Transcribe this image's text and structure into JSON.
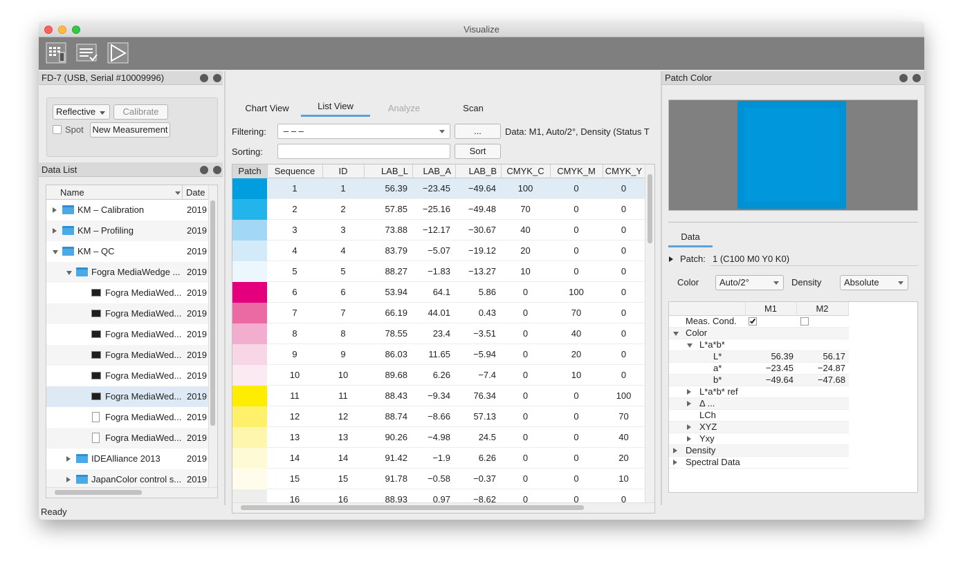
{
  "window": {
    "title": "Visualize",
    "status": "Ready"
  },
  "device_panel": {
    "title": "FD-7 (USB, Serial #10009996)",
    "mode": "Reflective",
    "calibrate": "Calibrate",
    "spot": "Spot",
    "new_measurement": "New Measurement"
  },
  "data_list": {
    "title": "Data List",
    "columns": [
      "Name",
      "Date"
    ],
    "rows": [
      {
        "name": "KM – Calibration",
        "date": "2019"
      },
      {
        "name": "KM – Profiling",
        "date": "2019"
      },
      {
        "name": "KM – QC",
        "date": "2019"
      },
      {
        "name": "Fogra MediaWedge ...",
        "date": "2019"
      },
      {
        "name": "Fogra MediaWed...",
        "date": "2019"
      },
      {
        "name": "Fogra MediaWed...",
        "date": "2019"
      },
      {
        "name": "Fogra MediaWed...",
        "date": "2019"
      },
      {
        "name": "Fogra MediaWed...",
        "date": "2019"
      },
      {
        "name": "Fogra MediaWed...",
        "date": "2019"
      },
      {
        "name": "Fogra MediaWed...",
        "date": "2019"
      },
      {
        "name": "Fogra MediaWed...",
        "date": "2019"
      },
      {
        "name": "Fogra MediaWed...",
        "date": "2019"
      },
      {
        "name": "IDEAlliance 2013",
        "date": "2019"
      },
      {
        "name": "JapanColor control s...",
        "date": "2019"
      }
    ]
  },
  "tabs": [
    "Chart View",
    "List View",
    "Analyze",
    "Scan"
  ],
  "filter": {
    "label": "Filtering:",
    "value": "– – –",
    "button": "...",
    "info": "Data: M1, Auto/2°, Density (Status T"
  },
  "sort": {
    "label": "Sorting:",
    "button": "Sort"
  },
  "table": {
    "columns": [
      "Patch",
      "Sequence",
      "ID",
      "LAB_L",
      "LAB_A",
      "LAB_B",
      "CMYK_C",
      "CMYK_M",
      "CMYK_Y"
    ],
    "patch_colors": [
      "#009ddf",
      "#22b4ea",
      "#a2d8f5",
      "#d3ebf9",
      "#ebf6fd",
      "#e4007d",
      "#ec6aa4",
      "#f3aecf",
      "#f8d6e6",
      "#fbeaf2",
      "#ffed00",
      "#fff06b",
      "#fff6ad",
      "#fffad6",
      "#fffcec",
      "#eeeeec"
    ],
    "rows": [
      [
        "1",
        "1",
        "56.39",
        "−23.45",
        "−49.64",
        "100",
        "0",
        "0"
      ],
      [
        "2",
        "2",
        "57.85",
        "−25.16",
        "−49.48",
        "70",
        "0",
        "0"
      ],
      [
        "3",
        "3",
        "73.88",
        "−12.17",
        "−30.67",
        "40",
        "0",
        "0"
      ],
      [
        "4",
        "4",
        "83.79",
        "−5.07",
        "−19.12",
        "20",
        "0",
        "0"
      ],
      [
        "5",
        "5",
        "88.27",
        "−1.83",
        "−13.27",
        "10",
        "0",
        "0"
      ],
      [
        "6",
        "6",
        "53.94",
        "64.1",
        "5.86",
        "0",
        "100",
        "0"
      ],
      [
        "7",
        "7",
        "66.19",
        "44.01",
        "0.43",
        "0",
        "70",
        "0"
      ],
      [
        "8",
        "8",
        "78.55",
        "23.4",
        "−3.51",
        "0",
        "40",
        "0"
      ],
      [
        "9",
        "9",
        "86.03",
        "11.65",
        "−5.94",
        "0",
        "20",
        "0"
      ],
      [
        "10",
        "10",
        "89.68",
        "6.26",
        "−7.4",
        "0",
        "10",
        "0"
      ],
      [
        "11",
        "11",
        "88.43",
        "−9.34",
        "76.34",
        "0",
        "0",
        "100"
      ],
      [
        "12",
        "12",
        "88.74",
        "−8.66",
        "57.13",
        "0",
        "0",
        "70"
      ],
      [
        "13",
        "13",
        "90.26",
        "−4.98",
        "24.5",
        "0",
        "0",
        "40"
      ],
      [
        "14",
        "14",
        "91.42",
        "−1.9",
        "6.26",
        "0",
        "0",
        "20"
      ],
      [
        "15",
        "15",
        "91.78",
        "−0.58",
        "−0.37",
        "0",
        "0",
        "10"
      ],
      [
        "16",
        "16",
        "88.93",
        "0.97",
        "−8.62",
        "0",
        "0",
        "0"
      ]
    ]
  },
  "patch_panel": {
    "title": "Patch Color",
    "patch_color": "#0097dd",
    "tab": "Data",
    "patch_label": "Patch:",
    "patch_value": "1 (C100 M0 Y0 K0)",
    "color_label": "Color",
    "color_value": "Auto/2°",
    "density_label": "Density",
    "density_value": "Absolute",
    "columns": [
      "M1",
      "M2"
    ],
    "rows": [
      {
        "label": "Meas. Cond.",
        "checks": [
          true,
          false
        ]
      },
      {
        "label": "Color"
      },
      {
        "label": "L*a*b*"
      },
      {
        "label": "L*",
        "values": [
          "56.39",
          "56.17"
        ]
      },
      {
        "label": "a*",
        "values": [
          "−23.45",
          "−24.87"
        ]
      },
      {
        "label": "b*",
        "values": [
          "−49.64",
          "−47.68"
        ]
      },
      {
        "label": "L*a*b* ref"
      },
      {
        "label": "Δ ..."
      },
      {
        "label": "LCh"
      },
      {
        "label": "XYZ"
      },
      {
        "label": "Yxy"
      },
      {
        "label": "Density"
      },
      {
        "label": "Spectral Data"
      }
    ]
  }
}
